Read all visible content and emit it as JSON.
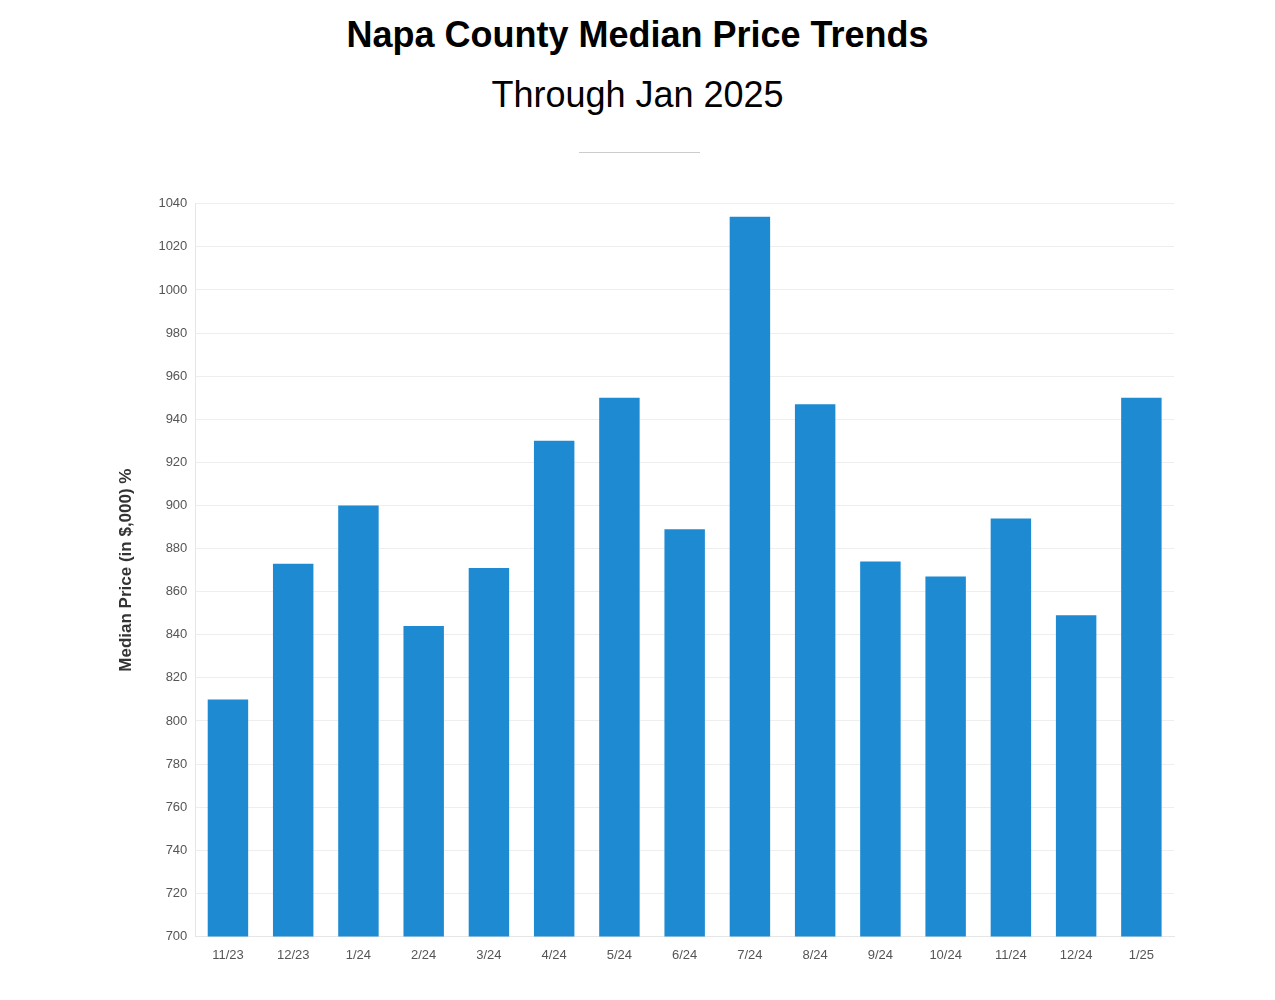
{
  "chart_data": {
    "type": "bar",
    "title": "Napa County Median Price Trends",
    "subtitle": "Through Jan 2025",
    "y_label": "Median Price (in $,000) %",
    "categories": [
      "11/23",
      "12/23",
      "1/24",
      "2/24",
      "3/24",
      "4/24",
      "5/24",
      "6/24",
      "7/24",
      "8/24",
      "9/24",
      "10/24",
      "11/24",
      "12/24",
      "1/25"
    ],
    "values": [
      810,
      873,
      900,
      844,
      871,
      930,
      950,
      889,
      1034,
      947,
      874,
      867,
      894,
      849,
      950
    ],
    "color": "#1e8ad2",
    "ylim": [
      700,
      1040
    ],
    "yticks": [
      700,
      720,
      740,
      760,
      780,
      800,
      820,
      840,
      860,
      880,
      900,
      920,
      940,
      960,
      980,
      1000,
      1020,
      1040
    ],
    "grid": true
  }
}
